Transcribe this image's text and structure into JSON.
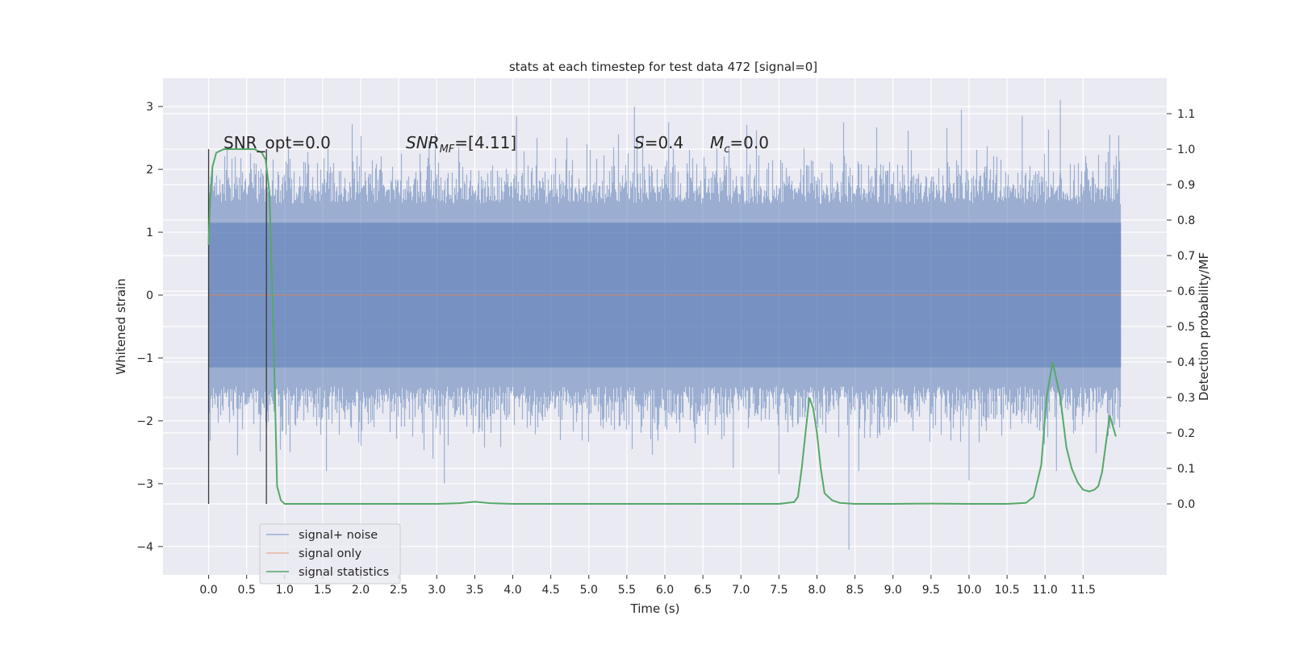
{
  "chart_data": {
    "type": "line",
    "title": "stats at each timestep for test data 472 [signal=0]",
    "xlabel": "Time (s)",
    "ylabel": "Whitened strain",
    "ylabel_right": "Detection probability/MF",
    "xlim": [
      -0.6,
      12.6
    ],
    "ylim": [
      -4.45,
      3.45
    ],
    "ylim_right": [
      -0.2,
      1.2
    ],
    "x_ticks": [
      0.0,
      0.5,
      1.0,
      1.5,
      2.0,
      2.5,
      3.0,
      3.5,
      4.0,
      4.5,
      5.0,
      5.5,
      6.0,
      6.5,
      7.0,
      7.5,
      8.0,
      8.5,
      9.0,
      9.5,
      10.0,
      10.5,
      11.0,
      11.5
    ],
    "x_tick_labels": [
      "0.0",
      "0.5",
      "1.0",
      "1.5",
      "2.0",
      "2.5",
      "3.0",
      "3.5",
      "4.0",
      "4.5",
      "5.0",
      "5.5",
      "6.0",
      "6.5",
      "7.0",
      "7.5",
      "8.0",
      "8.5",
      "9.0",
      "9.5",
      "10.0",
      "10.5",
      "11.0",
      "11.5"
    ],
    "y_ticks": [
      -4,
      -3,
      -2,
      -1,
      0,
      1,
      2,
      3
    ],
    "y_tick_labels": [
      "−4",
      "−3",
      "−2",
      "−1",
      "0",
      "1",
      "2",
      "3"
    ],
    "y_right_ticks": [
      0.0,
      0.1,
      0.2,
      0.3,
      0.4,
      0.5,
      0.6,
      0.7,
      0.8,
      0.9,
      1.0,
      1.1
    ],
    "y_right_tick_labels": [
      "0.0",
      "0.1",
      "0.2",
      "0.3",
      "0.4",
      "0.5",
      "0.6",
      "0.7",
      "0.8",
      "0.9",
      "1.0",
      "1.1"
    ],
    "grid": true,
    "legend_position": "lower-left",
    "annotations": {
      "snr_opt": "SNR_opt=0.0",
      "snr_mf_main": "SNR",
      "snr_mf_sub": "MF",
      "snr_mf_value": "=[4.11]",
      "s_symbol": "S",
      "s_value": "=0.4",
      "mc_symbol": "M",
      "mc_sub": "c",
      "mc_value": "=0.0"
    },
    "vertical_markers": [
      0.0,
      0.76
    ],
    "series": [
      {
        "name": "signal+ noise",
        "color": "#4c72b0",
        "description_envelope": {
          "x_range": [
            0.0,
            12.0
          ],
          "typical_range": [
            -1.5,
            1.5
          ],
          "peaks": [
            [
              0.35,
              2.2
            ],
            [
              0.6,
              2.1
            ],
            [
              1.05,
              2.35
            ],
            [
              2.9,
              2.45
            ],
            [
              4.05,
              2.85
            ],
            [
              5.6,
              3.0
            ],
            [
              6.05,
              2.75
            ],
            [
              8.35,
              2.75
            ],
            [
              9.9,
              2.95
            ],
            [
              10.7,
              2.85
            ],
            [
              11.2,
              3.1
            ],
            [
              11.85,
              2.55
            ]
          ],
          "troughs": [
            [
              0.0,
              -2.6
            ],
            [
              0.38,
              -2.55
            ],
            [
              1.55,
              -2.8
            ],
            [
              2.95,
              -2.6
            ],
            [
              3.1,
              -3.0
            ],
            [
              6.9,
              -2.75
            ],
            [
              7.5,
              -2.85
            ],
            [
              8.42,
              -4.05
            ],
            [
              8.55,
              -2.8
            ],
            [
              10.0,
              -2.95
            ],
            [
              11.15,
              -2.8
            ]
          ]
        }
      },
      {
        "name": "signal only",
        "color": "#dd8452",
        "x": [
          0.0,
          12.0
        ],
        "y": [
          0.0,
          0.0
        ]
      },
      {
        "name": "signal statistics",
        "color": "#55a868",
        "axis": "right",
        "x": [
          0.0,
          0.02,
          0.05,
          0.1,
          0.15,
          0.2,
          0.3,
          0.4,
          0.5,
          0.6,
          0.65,
          0.7,
          0.75,
          0.8,
          0.85,
          0.9,
          0.95,
          1.0,
          1.5,
          2.0,
          2.5,
          3.0,
          3.3,
          3.5,
          3.7,
          4.0,
          5.0,
          6.0,
          7.0,
          7.5,
          7.7,
          7.75,
          7.8,
          7.85,
          7.9,
          7.95,
          8.0,
          8.05,
          8.1,
          8.2,
          8.3,
          8.5,
          9.0,
          9.5,
          10.0,
          10.5,
          10.75,
          10.85,
          10.95,
          11.02,
          11.1,
          11.15,
          11.2,
          11.28,
          11.35,
          11.43,
          11.5,
          11.58,
          11.65,
          11.7,
          11.75,
          11.85,
          11.93
        ],
        "y": [
          0.73,
          0.85,
          0.95,
          0.99,
          0.995,
          1.0,
          1.0,
          1.0,
          1.0,
          1.0,
          0.995,
          0.99,
          0.97,
          0.88,
          0.5,
          0.05,
          0.01,
          0.0,
          0.0,
          0.0,
          0.0,
          0.0,
          0.002,
          0.006,
          0.002,
          0.0,
          0.0,
          0.0,
          0.0,
          0.0,
          0.005,
          0.02,
          0.1,
          0.2,
          0.3,
          0.27,
          0.2,
          0.1,
          0.03,
          0.01,
          0.003,
          0.0,
          0.0,
          0.001,
          0.0,
          0.0,
          0.003,
          0.02,
          0.11,
          0.3,
          0.4,
          0.35,
          0.3,
          0.16,
          0.1,
          0.06,
          0.04,
          0.035,
          0.04,
          0.05,
          0.09,
          0.25,
          0.19
        ]
      }
    ]
  }
}
